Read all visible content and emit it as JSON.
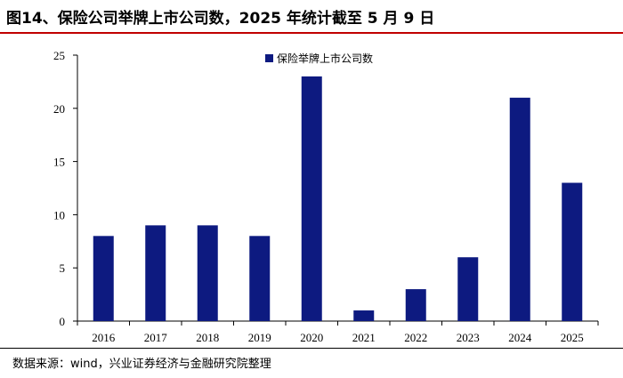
{
  "figure": {
    "title": "图14、保险公司举牌上市公司数，2025 年统计截至 5 月 9 日",
    "source": "数据来源：wind，兴业证券经济与金融研究院整理"
  },
  "chart_data": {
    "type": "bar",
    "categories": [
      "2016",
      "2017",
      "2018",
      "2019",
      "2020",
      "2021",
      "2022",
      "2023",
      "2024",
      "2025"
    ],
    "series": [
      {
        "name": "保险举牌上市公司数",
        "values": [
          8,
          9,
          9,
          8,
          23,
          1,
          3,
          6,
          21,
          13
        ],
        "color": "#0d1a80"
      }
    ],
    "ylim": [
      0,
      25
    ],
    "yticks": [
      0,
      5,
      10,
      15,
      20,
      25
    ],
    "xlabel": "",
    "ylabel": "",
    "grid": false,
    "legend_position": "top-center"
  }
}
